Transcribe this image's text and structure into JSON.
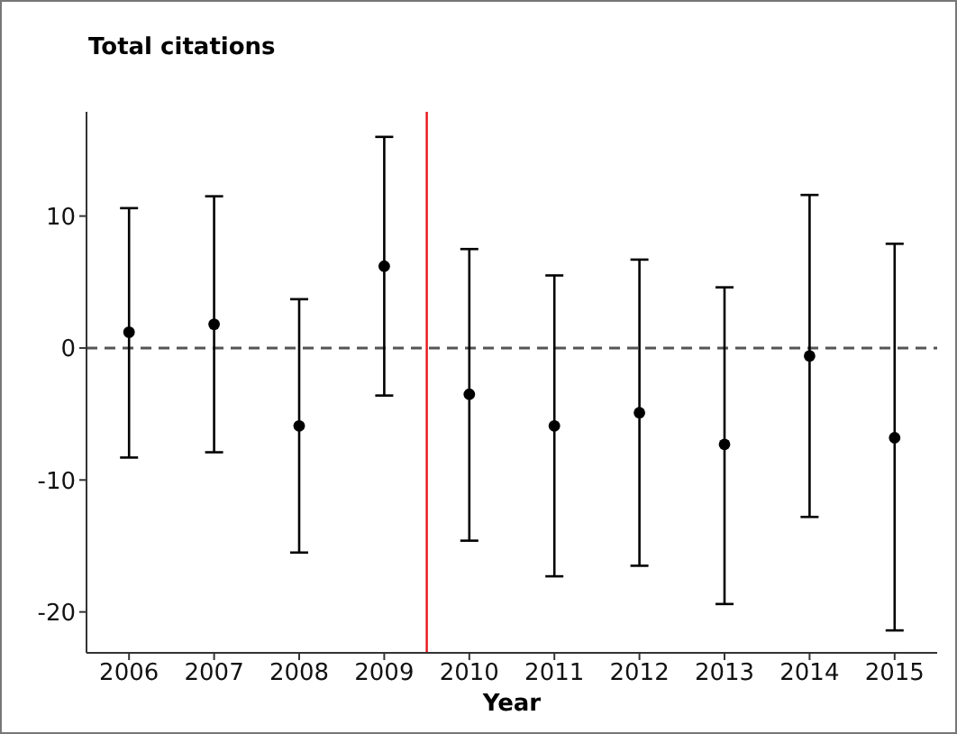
{
  "chart_data": {
    "type": "scatter",
    "title": "Total citations",
    "xlabel": "Year",
    "x": [
      2006,
      2007,
      2008,
      2009,
      2010,
      2011,
      2012,
      2013,
      2014,
      2015
    ],
    "values": [
      1.2,
      1.8,
      -5.9,
      6.2,
      -3.5,
      -5.9,
      -4.9,
      -7.3,
      -0.6,
      -6.8
    ],
    "errors": [
      [
        -8.3,
        10.6
      ],
      [
        -7.9,
        11.5
      ],
      [
        -15.5,
        3.7
      ],
      [
        -3.6,
        16.0
      ],
      [
        -14.6,
        7.5
      ],
      [
        -17.3,
        5.5
      ],
      [
        -16.5,
        6.7
      ],
      [
        -19.4,
        4.6
      ],
      [
        -12.8,
        11.6
      ],
      [
        -21.4,
        7.9
      ]
    ],
    "color": "#000000",
    "marker": "circle",
    "xlim": [
      2005.5,
      2015.5
    ],
    "xticks": [
      2006,
      2007,
      2008,
      2009,
      2010,
      2011,
      2012,
      2013,
      2014,
      2015
    ],
    "ylim": [
      -23.1,
      17.9
    ],
    "yticks": [
      -20,
      -10,
      0,
      10
    ],
    "ref_lines": [
      {
        "axis": "x",
        "value": 2009.5,
        "color": "#e8141b",
        "line_style": "solid"
      },
      {
        "axis": "y",
        "value": 0,
        "color": "#555555",
        "line_style": "dashed"
      }
    ],
    "grid": false,
    "legend": false
  }
}
